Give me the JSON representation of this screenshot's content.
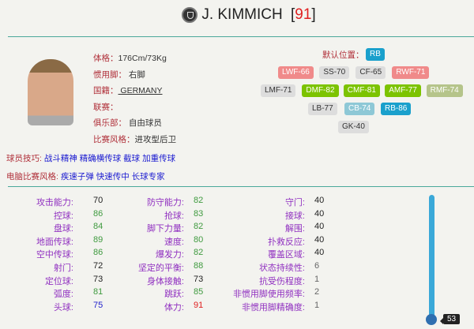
{
  "header": {
    "name": "J. KIMMICH",
    "rating_open": "[",
    "rating": "91",
    "rating_close": "]"
  },
  "info": [
    {
      "k": "体格",
      "sep": "：",
      "v": "176Cm/73Kg"
    },
    {
      "k": "惯用脚",
      "sep": "： ",
      "v": "右脚"
    },
    {
      "k": "国籍",
      "sep": "：",
      "v": " GERMANY"
    },
    {
      "k": "联赛",
      "sep": "：",
      "v": ""
    },
    {
      "k": "俱乐部",
      "sep": "： ",
      "v": "自由球员"
    },
    {
      "k": "比赛风格",
      "sep": "：",
      "v": "进攻型后卫"
    }
  ],
  "skills": {
    "label": "球员技巧:",
    "value": "战斗精神 精确横传球 截球 加重传球"
  },
  "ai_style": {
    "label": "电脑比赛风格:",
    "value": "疾速子弹 快速传中 长球专家"
  },
  "positions": {
    "default_label": "默认位置：",
    "default": "RB",
    "chips": [
      {
        "t": "LWF-66",
        "c": "#f08a8a",
        "f": "#fff"
      },
      {
        "t": "SS-70",
        "c": "#ddd",
        "f": "#333"
      },
      {
        "t": "CF-65",
        "c": "#ddd",
        "f": "#333"
      },
      {
        "t": "RWF-71",
        "c": "#f08a8a",
        "f": "#fff"
      },
      {
        "t": "LMF-71",
        "c": "#ddd",
        "f": "#333"
      },
      {
        "t": "DMF-82",
        "c": "#7cc300",
        "f": "#fff"
      },
      {
        "t": "CMF-81",
        "c": "#7cc300",
        "f": "#fff"
      },
      {
        "t": "AMF-77",
        "c": "#7cc300",
        "f": "#fff"
      },
      {
        "t": "RMF-74",
        "c": "#b5c48a",
        "f": "#fff"
      },
      {
        "t": "LB-77",
        "c": "#ddd",
        "f": "#333"
      },
      {
        "t": "CB-74",
        "c": "#8ec8d6",
        "f": "#fff"
      },
      {
        "t": "RB-86",
        "c": "#1aa0cc",
        "f": "#fff"
      },
      {
        "t": "GK-40",
        "c": "#ddd",
        "f": "#333"
      }
    ]
  },
  "stats": [
    [
      [
        "攻击能力:",
        "70",
        "b"
      ],
      [
        "控球:",
        "86",
        "g"
      ],
      [
        "盘球:",
        "84",
        "g"
      ],
      [
        "地面传球:",
        "89",
        "g"
      ],
      [
        "空中传球:",
        "86",
        "g"
      ],
      [
        "射门:",
        "72",
        "b"
      ],
      [
        "定位球:",
        "73",
        "b"
      ],
      [
        "弧度:",
        "81",
        "g"
      ],
      [
        "头球:",
        "75",
        "bl"
      ]
    ],
    [
      [
        "防守能力:",
        "82",
        "g"
      ],
      [
        "抢球:",
        "83",
        "g"
      ],
      [
        "脚下力量:",
        "82",
        "g"
      ],
      [
        "速度:",
        "80",
        "g"
      ],
      [
        "爆发力:",
        "82",
        "g"
      ],
      [
        "坚定的平衡:",
        "88",
        "g"
      ],
      [
        "身体接触:",
        "73",
        "b"
      ],
      [
        "跳跃:",
        "85",
        "g"
      ],
      [
        "体力:",
        "91",
        "r"
      ]
    ],
    [
      [
        "守门:",
        "40",
        "b"
      ],
      [
        "接球:",
        "40",
        "b"
      ],
      [
        "解围:",
        "40",
        "b"
      ],
      [
        "扑救反应:",
        "40",
        "b"
      ],
      [
        "覆盖区域:",
        "40",
        "b"
      ],
      [
        "状态持续性:",
        "6",
        "gr"
      ],
      [
        "抗受伤程度:",
        "1",
        "gr"
      ],
      [
        "非惯用脚使用频率:",
        "2",
        "gr"
      ],
      [
        "非惯用脚精确度:",
        "1",
        "gr"
      ]
    ]
  ],
  "level_slider": {
    "value": "53"
  }
}
